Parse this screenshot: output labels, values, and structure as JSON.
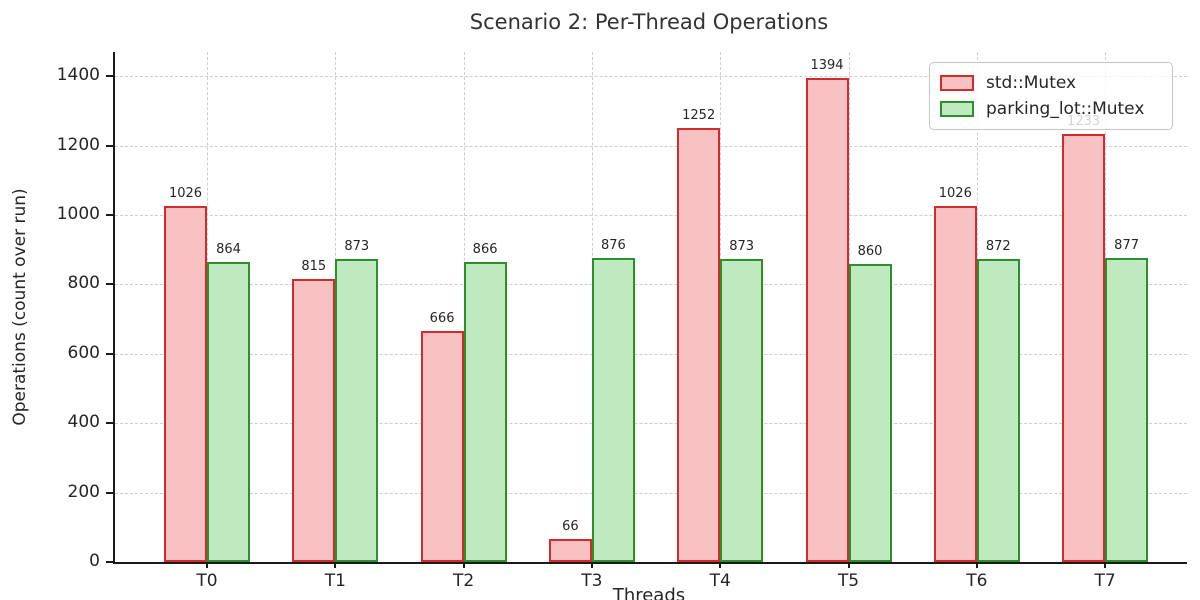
{
  "title": "Scenario 2: Per-Thread Operations",
  "colors": {
    "red_edge": "#d22b2b",
    "red_fill": "#f9c2c2",
    "green_edge": "#2b8f2b",
    "green_fill": "#bfeabf",
    "grid": "#cdcdcd",
    "axis": "#1a1a1a",
    "text": "#262626",
    "title_text": "#333333"
  },
  "legend": {
    "items": [
      {
        "label": "std::Mutex"
      },
      {
        "label": "parking_lot::Mutex"
      }
    ]
  },
  "chart_data": {
    "type": "bar",
    "title": "Scenario 2: Per-Thread Operations",
    "xlabel": "Threads",
    "ylabel": "Operations (count over run)",
    "categories": [
      "T0",
      "T1",
      "T2",
      "T3",
      "T4",
      "T5",
      "T6",
      "T7"
    ],
    "series": [
      {
        "name": "std::Mutex",
        "values": [
          1026,
          815,
          666,
          66,
          1252,
          1394,
          1026,
          1233
        ]
      },
      {
        "name": "parking_lot::Mutex",
        "values": [
          864,
          873,
          866,
          876,
          873,
          860,
          872,
          877
        ]
      }
    ],
    "ylim": [
      0,
      1470
    ],
    "yticks": [
      0,
      200,
      400,
      600,
      800,
      1000,
      1200,
      1400
    ],
    "grid": true,
    "legend_position": "upper right",
    "bar_value_labels": true,
    "note": "T7 std::Mutex value label (1233) is partially hidden behind the legend box"
  }
}
